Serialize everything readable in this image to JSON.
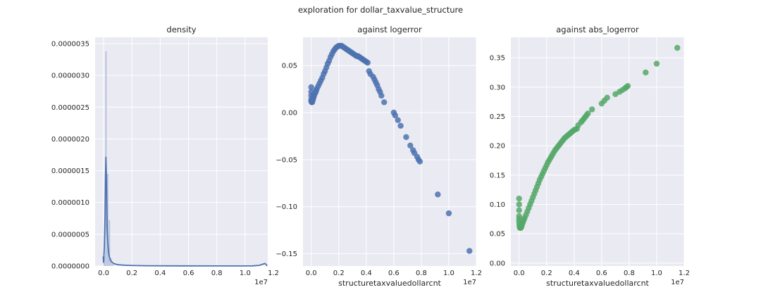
{
  "suptitle": "exploration for dollar_taxvalue_structure",
  "colors": {
    "background": "#eaeaf2",
    "grid": "#ffffff",
    "blue": "#4c72b0",
    "green": "#55a868"
  },
  "chart_data": [
    {
      "type": "bar",
      "title": "density",
      "xlabel": "",
      "ylabel": "",
      "x_offset_text": "1e7",
      "xlim": [
        -0.06,
        1.16
      ],
      "ylim": [
        0,
        3.6e-06
      ],
      "xticks": [
        0.0,
        0.2,
        0.4,
        0.6,
        0.8,
        1.0,
        1.2
      ],
      "xtick_labels": [
        "0.0",
        "0.2",
        "0.4",
        "0.6",
        "0.8",
        "1.0",
        "1.2"
      ],
      "yticks": [
        0,
        5e-07,
        1e-06,
        1.5e-06,
        2e-06,
        2.5e-06,
        3e-06,
        3.5e-06
      ],
      "ytick_labels": [
        "0.0000000",
        "0.0000005",
        "0.0000010",
        "0.0000015",
        "0.0000020",
        "0.0000025",
        "0.0000030",
        "0.0000035"
      ],
      "histogram": {
        "bin_edges": [
          0.0,
          0.012,
          0.024,
          0.036,
          0.048,
          0.06,
          0.072
        ],
        "values": [
          1.5e-07,
          3.38e-06,
          1.45e-06,
          7.2e-07,
          1.2e-07,
          3e-08
        ],
        "color": "#a9bbd9"
      },
      "kde": {
        "x": [
          -0.003,
          0.0,
          0.005,
          0.01,
          0.013,
          0.016,
          0.019,
          0.022,
          0.025,
          0.03,
          0.035,
          0.04,
          0.05,
          0.07,
          0.1,
          0.15,
          0.2,
          0.3,
          0.5,
          0.8,
          1.0,
          1.05,
          1.1,
          1.14,
          1.15,
          1.155
        ],
        "y": [
          1.5e-07,
          5e-08,
          3e-07,
          8e-07,
          1.4e-06,
          1.72e-06,
          1.5e-06,
          1e-06,
          6e-07,
          3.5e-07,
          2.2e-07,
          1.5e-07,
          8e-08,
          4e-08,
          2e-08,
          1.2e-08,
          8e-09,
          4e-09,
          2e-09,
          1e-09,
          1e-09,
          2e-09,
          1e-08,
          4e-08,
          2e-08,
          0.0
        ],
        "color": "#4c72b0"
      }
    },
    {
      "type": "scatter",
      "title": "against logerror",
      "xlabel": "structuretaxvaluedollarcnt",
      "ylabel": "",
      "x_offset_text": "1e7",
      "xlim": [
        -0.06,
        1.2
      ],
      "ylim": [
        -0.163,
        0.08
      ],
      "xticks": [
        0.0,
        0.2,
        0.4,
        0.6,
        0.8,
        1.0,
        1.2
      ],
      "xtick_labels": [
        "0.0",
        "0.2",
        "0.4",
        "0.6",
        "0.8",
        "1.0",
        "1.2"
      ],
      "yticks": [
        -0.15,
        -0.1,
        -0.05,
        0.0,
        0.05
      ],
      "ytick_labels": [
        "−0.15",
        "−0.10",
        "−0.05",
        "0.00",
        "0.05"
      ],
      "color": "#4c72b0",
      "points": {
        "x": [
          0.0,
          0.0,
          0.0,
          0.0,
          0.0,
          0.002,
          0.004,
          0.006,
          0.008,
          0.01,
          0.012,
          0.014,
          0.016,
          0.018,
          0.02,
          0.025,
          0.03,
          0.035,
          0.04,
          0.05,
          0.06,
          0.07,
          0.08,
          0.09,
          0.1,
          0.11,
          0.12,
          0.13,
          0.14,
          0.15,
          0.16,
          0.17,
          0.18,
          0.19,
          0.2,
          0.21,
          0.22,
          0.23,
          0.24,
          0.25,
          0.26,
          0.27,
          0.28,
          0.29,
          0.3,
          0.31,
          0.32,
          0.33,
          0.34,
          0.35,
          0.36,
          0.37,
          0.38,
          0.39,
          0.4,
          0.41,
          0.42,
          0.43,
          0.45,
          0.46,
          0.47,
          0.48,
          0.49,
          0.5,
          0.51,
          0.53,
          0.6,
          0.61,
          0.63,
          0.65,
          0.69,
          0.72,
          0.74,
          0.75,
          0.77,
          0.78,
          0.79,
          0.92,
          1.0,
          1.15
        ],
        "y": [
          0.027,
          0.022,
          0.018,
          0.014,
          0.012,
          0.012,
          0.011,
          0.011,
          0.012,
          0.013,
          0.014,
          0.015,
          0.016,
          0.017,
          0.018,
          0.02,
          0.021,
          0.023,
          0.025,
          0.028,
          0.031,
          0.034,
          0.037,
          0.041,
          0.044,
          0.048,
          0.052,
          0.055,
          0.059,
          0.062,
          0.065,
          0.067,
          0.069,
          0.07,
          0.071,
          0.071,
          0.071,
          0.07,
          0.069,
          0.068,
          0.067,
          0.066,
          0.065,
          0.064,
          0.063,
          0.062,
          0.061,
          0.06,
          0.06,
          0.059,
          0.058,
          0.057,
          0.056,
          0.055,
          0.054,
          0.053,
          0.044,
          0.041,
          0.038,
          0.035,
          0.032,
          0.029,
          0.025,
          0.022,
          0.018,
          0.011,
          0.0,
          -0.003,
          -0.008,
          -0.014,
          -0.026,
          -0.035,
          -0.04,
          -0.043,
          -0.047,
          -0.05,
          -0.052,
          -0.087,
          -0.107,
          -0.147
        ]
      }
    },
    {
      "type": "scatter",
      "title": "against abs_logerror",
      "xlabel": "structuretaxvaluedollarcnt",
      "ylabel": "",
      "x_offset_text": "1e7",
      "xlim": [
        -0.06,
        1.2
      ],
      "ylim": [
        -0.005,
        0.385
      ],
      "xticks": [
        0.0,
        0.2,
        0.4,
        0.6,
        0.8,
        1.0,
        1.2
      ],
      "xtick_labels": [
        "0.0",
        "0.2",
        "0.4",
        "0.6",
        "0.8",
        "1.0",
        "1.2"
      ],
      "yticks": [
        0.0,
        0.05,
        0.1,
        0.15,
        0.2,
        0.25,
        0.3,
        0.35
      ],
      "ytick_labels": [
        "0.00",
        "0.05",
        "0.10",
        "0.15",
        "0.20",
        "0.25",
        "0.30",
        "0.35"
      ],
      "color": "#55a868",
      "points": {
        "x": [
          0.0,
          0.0,
          0.0,
          0.0,
          0.0,
          0.0,
          0.002,
          0.004,
          0.006,
          0.008,
          0.01,
          0.012,
          0.014,
          0.016,
          0.018,
          0.02,
          0.025,
          0.03,
          0.035,
          0.04,
          0.05,
          0.06,
          0.07,
          0.08,
          0.09,
          0.1,
          0.11,
          0.12,
          0.13,
          0.14,
          0.15,
          0.16,
          0.17,
          0.18,
          0.19,
          0.2,
          0.21,
          0.22,
          0.23,
          0.24,
          0.25,
          0.26,
          0.27,
          0.28,
          0.29,
          0.3,
          0.31,
          0.32,
          0.33,
          0.34,
          0.35,
          0.36,
          0.37,
          0.38,
          0.39,
          0.4,
          0.41,
          0.42,
          0.43,
          0.45,
          0.46,
          0.47,
          0.48,
          0.49,
          0.5,
          0.53,
          0.6,
          0.62,
          0.64,
          0.7,
          0.73,
          0.75,
          0.77,
          0.78,
          0.79,
          0.92,
          1.0,
          1.15
        ],
        "y": [
          0.11,
          0.1,
          0.09,
          0.08,
          0.075,
          0.07,
          0.065,
          0.062,
          0.06,
          0.06,
          0.06,
          0.06,
          0.061,
          0.062,
          0.063,
          0.065,
          0.068,
          0.071,
          0.074,
          0.077,
          0.082,
          0.088,
          0.094,
          0.1,
          0.106,
          0.112,
          0.118,
          0.124,
          0.13,
          0.136,
          0.142,
          0.147,
          0.152,
          0.157,
          0.162,
          0.167,
          0.172,
          0.176,
          0.18,
          0.184,
          0.188,
          0.192,
          0.195,
          0.198,
          0.201,
          0.204,
          0.207,
          0.21,
          0.213,
          0.215,
          0.217,
          0.219,
          0.221,
          0.223,
          0.225,
          0.227,
          0.228,
          0.229,
          0.235,
          0.24,
          0.243,
          0.246,
          0.249,
          0.252,
          0.255,
          0.262,
          0.272,
          0.277,
          0.282,
          0.288,
          0.292,
          0.295,
          0.298,
          0.3,
          0.302,
          0.325,
          0.34,
          0.367
        ]
      }
    }
  ]
}
